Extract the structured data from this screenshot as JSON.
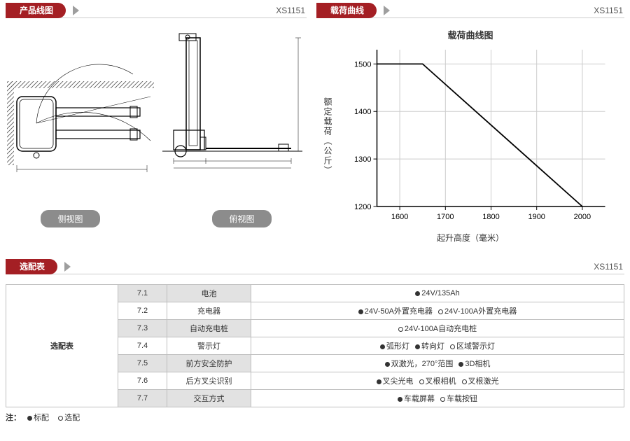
{
  "model_code": "XS1151",
  "sections": {
    "product_drawing": {
      "title": "产品线图"
    },
    "load_curve": {
      "title": "载荷曲线"
    },
    "options": {
      "title": "选配表"
    }
  },
  "drawing_labels": {
    "side": "侧视图",
    "top": "俯视图"
  },
  "chart": {
    "title": "载荷曲线图",
    "ylabel": "额定载荷（公斤）",
    "xlabel": "起升高度（毫米）",
    "xlim": [
      1550,
      2050
    ],
    "ylim": [
      1200,
      1530
    ],
    "xticks": [
      1600,
      1700,
      1800,
      1900,
      2000
    ],
    "yticks": [
      1200,
      1300,
      1400,
      1500
    ],
    "grid_color": "#cccccc",
    "axis_color": "#000000",
    "line_color": "#000000",
    "background": "#ffffff",
    "series": [
      {
        "x": 1550,
        "y": 1500
      },
      {
        "x": 1650,
        "y": 1500
      },
      {
        "x": 2000,
        "y": 1200
      }
    ]
  },
  "options_table": {
    "header": "选配表",
    "rows": [
      {
        "num": "7.1",
        "name": "电池",
        "items": [
          {
            "sym": "dot",
            "text": "24V/135Ah"
          }
        ],
        "shade": true
      },
      {
        "num": "7.2",
        "name": "充电器",
        "items": [
          {
            "sym": "dot",
            "text": "24V-50A外置充电器"
          },
          {
            "sym": "circ",
            "text": "24V-100A外置充电器"
          }
        ],
        "shade": false
      },
      {
        "num": "7.3",
        "name": "自动充电桩",
        "items": [
          {
            "sym": "circ",
            "text": "24V-100A自动充电桩"
          }
        ],
        "shade": true
      },
      {
        "num": "7.4",
        "name": "警示灯",
        "items": [
          {
            "sym": "dot",
            "text": "弧形灯"
          },
          {
            "sym": "dot",
            "text": "转向灯"
          },
          {
            "sym": "circ",
            "text": "区域警示灯"
          }
        ],
        "shade": false
      },
      {
        "num": "7.5",
        "name": "前方安全防护",
        "items": [
          {
            "sym": "dot",
            "text": "双激光，270°范围"
          },
          {
            "sym": "dot",
            "text": "3D相机"
          }
        ],
        "shade": true
      },
      {
        "num": "7.6",
        "name": "后方叉尖识别",
        "items": [
          {
            "sym": "dot",
            "text": "叉尖光电"
          },
          {
            "sym": "circ",
            "text": "叉根相机"
          },
          {
            "sym": "circ",
            "text": "叉根激光"
          }
        ],
        "shade": false
      },
      {
        "num": "7.7",
        "name": "交互方式",
        "items": [
          {
            "sym": "dot",
            "text": "车载屏幕"
          },
          {
            "sym": "circ",
            "text": "车载按钮"
          }
        ],
        "shade": true
      }
    ]
  },
  "legend": {
    "prefix": "注：",
    "standard": "标配",
    "optional": "选配"
  },
  "colors": {
    "header_bg": "#a41f24",
    "pill_bg": "#8c8c8c",
    "triangle": "#9e9e9e",
    "border": "#bfbfbf",
    "shade_bg": "#e2e2e2"
  }
}
